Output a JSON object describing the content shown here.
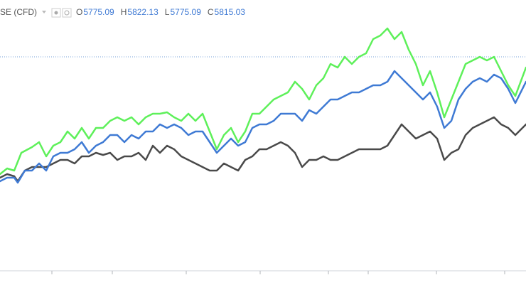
{
  "chart_data": {
    "type": "line",
    "symbol": "SE (CFD)",
    "ohlc": [
      {
        "label": "O",
        "value": 5775.09
      },
      {
        "label": "H",
        "value": 5822.13
      },
      {
        "label": "L",
        "value": 5775.09
      },
      {
        "label": "C",
        "value": 5815.03
      }
    ],
    "xlim": [
      0,
      740
    ],
    "ylim": [
      20,
      400
    ],
    "price_line": 320,
    "series": [
      {
        "color": "#5ef05a",
        "x": [
          0,
          10,
          20,
          30,
          45,
          55,
          65,
          75,
          85,
          95,
          105,
          115,
          125,
          135,
          145,
          155,
          165,
          175,
          185,
          195,
          205,
          215,
          225,
          235,
          245,
          255,
          265,
          275,
          285,
          295,
          305,
          315,
          325,
          335,
          345,
          355,
          365,
          375,
          385,
          395,
          405,
          415,
          425,
          435,
          445,
          455,
          465,
          475,
          485,
          495,
          505,
          515,
          525,
          535,
          545,
          555,
          565,
          575,
          585,
          595,
          605,
          615,
          625,
          635,
          645,
          655,
          665,
          675,
          685,
          695,
          705,
          715,
          725,
          740
        ],
        "values": [
          155,
          163,
          160,
          185,
          193,
          200,
          180,
          195,
          200,
          215,
          205,
          220,
          205,
          220,
          220,
          230,
          235,
          230,
          235,
          225,
          235,
          240,
          240,
          242,
          235,
          230,
          240,
          230,
          240,
          215,
          190,
          210,
          220,
          200,
          215,
          240,
          240,
          250,
          260,
          265,
          270,
          285,
          275,
          260,
          280,
          290,
          310,
          305,
          320,
          310,
          320,
          325,
          345,
          350,
          360,
          345,
          355,
          330,
          310,
          280,
          300,
          270,
          235,
          260,
          285,
          310,
          315,
          320,
          315,
          320,
          300,
          280,
          265,
          305
        ]
      },
      {
        "color": "#3f7ad4",
        "x": [
          0,
          10,
          20,
          25,
          35,
          45,
          55,
          65,
          75,
          85,
          95,
          105,
          115,
          125,
          135,
          145,
          155,
          165,
          175,
          185,
          195,
          205,
          215,
          225,
          235,
          245,
          255,
          265,
          275,
          285,
          295,
          305,
          315,
          325,
          335,
          345,
          355,
          365,
          375,
          385,
          395,
          405,
          415,
          425,
          435,
          445,
          455,
          465,
          475,
          485,
          495,
          505,
          515,
          525,
          535,
          545,
          555,
          565,
          575,
          585,
          595,
          605,
          615,
          625,
          635,
          645,
          655,
          665,
          675,
          685,
          695,
          705,
          715,
          725,
          740
        ],
        "values": [
          145,
          150,
          150,
          143,
          160,
          160,
          170,
          160,
          180,
          185,
          185,
          190,
          200,
          185,
          195,
          200,
          210,
          210,
          200,
          210,
          205,
          215,
          215,
          225,
          220,
          225,
          220,
          210,
          215,
          215,
          200,
          185,
          195,
          205,
          195,
          200,
          220,
          225,
          225,
          230,
          240,
          240,
          240,
          230,
          245,
          240,
          250,
          260,
          260,
          265,
          270,
          270,
          275,
          280,
          280,
          285,
          300,
          290,
          280,
          270,
          260,
          270,
          250,
          220,
          230,
          260,
          275,
          285,
          290,
          285,
          295,
          290,
          275,
          255,
          285
        ]
      },
      {
        "color": "#4a4a4a",
        "x": [
          0,
          10,
          20,
          25,
          35,
          45,
          55,
          65,
          75,
          85,
          95,
          105,
          115,
          125,
          135,
          145,
          155,
          165,
          175,
          185,
          195,
          205,
          215,
          225,
          235,
          245,
          255,
          265,
          275,
          285,
          295,
          305,
          315,
          325,
          335,
          345,
          355,
          365,
          375,
          385,
          395,
          405,
          415,
          425,
          435,
          445,
          455,
          465,
          475,
          485,
          495,
          505,
          515,
          525,
          535,
          545,
          555,
          565,
          575,
          585,
          595,
          605,
          615,
          625,
          635,
          645,
          655,
          665,
          675,
          685,
          695,
          705,
          715,
          725,
          740
        ],
        "values": [
          150,
          155,
          152,
          145,
          160,
          165,
          165,
          165,
          170,
          175,
          175,
          170,
          180,
          180,
          185,
          182,
          185,
          175,
          180,
          180,
          185,
          175,
          195,
          185,
          195,
          190,
          180,
          175,
          170,
          165,
          160,
          160,
          170,
          165,
          160,
          175,
          180,
          190,
          190,
          195,
          200,
          195,
          185,
          165,
          175,
          175,
          180,
          175,
          175,
          180,
          185,
          190,
          190,
          190,
          190,
          195,
          210,
          225,
          215,
          205,
          210,
          215,
          205,
          175,
          185,
          190,
          210,
          220,
          225,
          230,
          235,
          225,
          220,
          210,
          225
        ]
      }
    ]
  }
}
